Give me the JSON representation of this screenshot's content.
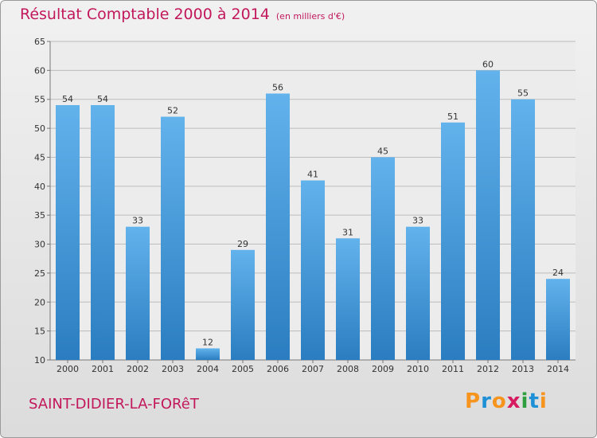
{
  "header": {
    "title": "Résultat Comptable 2000 à 2014",
    "unit": "(en milliers d'€)"
  },
  "footer": {
    "commune": "SAINT-DIDIER-LA-FORêT",
    "logo_letters": [
      "P",
      "r",
      "o",
      "x",
      "i",
      "t",
      "i"
    ],
    "logo_colors": [
      "#f7941d",
      "#1e90d6",
      "#f7941d",
      "#d81b60",
      "#2e9e3e",
      "#1e90d6",
      "#f7941d"
    ]
  },
  "colors": {
    "title": "#c2185b",
    "bar_light": "#62b2ec",
    "bar_dark": "#2a7dc0",
    "grid": "#bdbdbd"
  },
  "chart_data": {
    "type": "bar",
    "categories": [
      "2000",
      "2001",
      "2002",
      "2003",
      "2004",
      "2005",
      "2006",
      "2007",
      "2008",
      "2009",
      "2010",
      "2011",
      "2012",
      "2013",
      "2014"
    ],
    "values": [
      54,
      54,
      33,
      52,
      12,
      29,
      56,
      41,
      31,
      45,
      33,
      51,
      60,
      55,
      24
    ],
    "ylim": [
      10,
      65
    ],
    "yticks": [
      10,
      15,
      20,
      25,
      30,
      35,
      40,
      45,
      50,
      55,
      60,
      65
    ],
    "grid": true,
    "data_labels": true,
    "title": "Résultat Comptable 2000 à 2014",
    "xlabel": "",
    "ylabel": ""
  }
}
